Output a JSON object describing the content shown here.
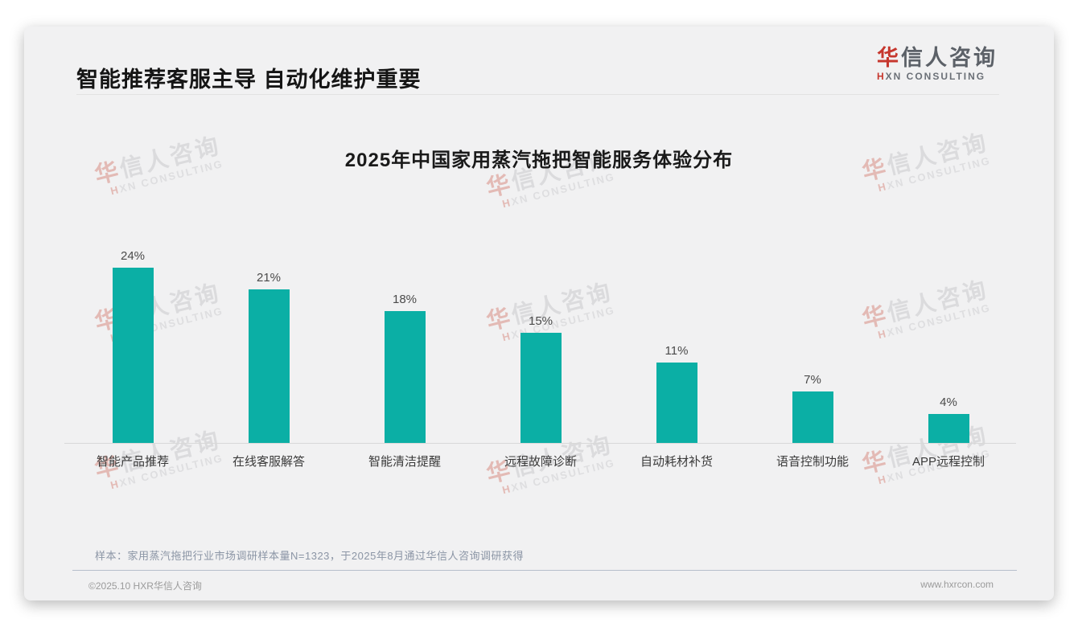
{
  "page": {
    "header_title": "智能推荐客服主导 自动化维护重要",
    "logo": {
      "cn_first": "华",
      "cn_rest": "信人咨询",
      "en_first": "H",
      "en_rest": "XN CONSULTING"
    },
    "watermark": {
      "line1_first": "华",
      "line1_rest": "信人咨询",
      "line2_first": "H",
      "line2_rest": "XN CONSULTING"
    },
    "footnote": "样本：家用蒸汽拖把行业市场调研样本量N=1323，于2025年8月通过华信人咨询调研获得",
    "footer_left": "©2025.10 HXR华信人咨询",
    "footer_right": "www.hxrcon.com"
  },
  "colors": {
    "bar": "#0bafa5",
    "accent_red": "#c6372e",
    "card_bg": "#f1f1f2",
    "footnote": "#8b95a5"
  },
  "chart_data": {
    "type": "bar",
    "title": "2025年中国家用蒸汽拖把智能服务体验分布",
    "categories": [
      "智能产品推荐",
      "在线客服解答",
      "智能清洁提醒",
      "远程故障诊断",
      "自动耗材补货",
      "语音控制功能",
      "APP远程控制"
    ],
    "values": [
      24,
      21,
      18,
      15,
      11,
      7,
      4
    ],
    "unit": "%",
    "value_labels": [
      "24%",
      "21%",
      "18%",
      "15%",
      "11%",
      "7%",
      "4%"
    ],
    "xlabel": "",
    "ylabel": "",
    "ylim": [
      0,
      26
    ],
    "grid": false,
    "legend": "none",
    "bar_color": "#0bafa5"
  }
}
